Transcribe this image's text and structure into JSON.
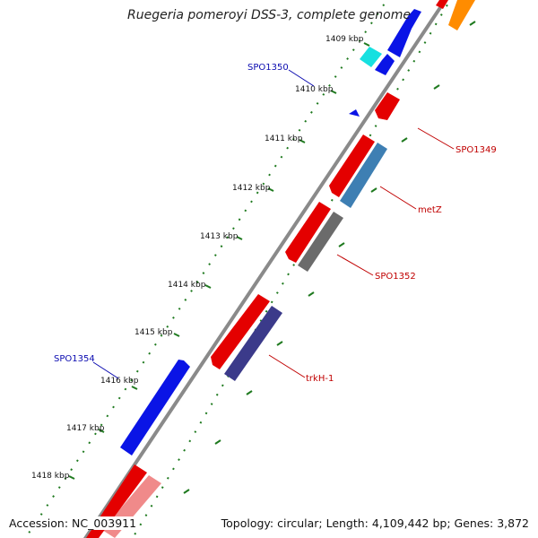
{
  "title": "Ruegeria pomeroyi DSS-3, complete genome",
  "footer": {
    "accession": "Accession: NC_003911",
    "info": "Topology: circular; Length: 4,109,442 bp; Genes: 3,872"
  },
  "colors": {
    "backbone": "#8a8a8a",
    "tick_green": "#1f7a1f",
    "forward_label": "#0b0bb0",
    "reverse_label": "#c00000"
  },
  "ticks": [
    "1409 kbp",
    "1410 kbp",
    "1411 kbp",
    "1412 kbp",
    "1413 kbp",
    "1414 kbp",
    "1415 kbp",
    "1416 kbp",
    "1417 kbp",
    "1418 kbp"
  ],
  "gene_labels": {
    "spo1350": "SPO1350",
    "spo1349": "SPO1349",
    "metz": "metZ",
    "spo1352": "SPO1352",
    "trkh1": "trkH-1",
    "spo1354": "SPO1354"
  }
}
